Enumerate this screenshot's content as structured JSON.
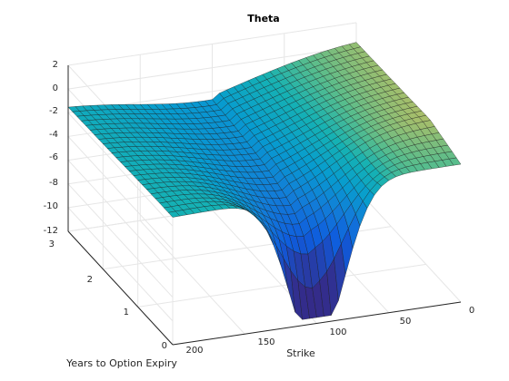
{
  "chart_data": {
    "type": "surface",
    "title": "Theta",
    "xlabel": "Strike",
    "ylabel": "Years to Option Expiry",
    "zlabel": "",
    "xlim": [
      0,
      200
    ],
    "ylim": [
      0,
      3
    ],
    "zlim": [
      -12,
      2
    ],
    "x_ticks": [
      "0",
      "50",
      "100",
      "150",
      "200"
    ],
    "y_ticks": [
      "0",
      "1",
      "2",
      "3"
    ],
    "z_ticks": [
      "2",
      "0",
      "-2",
      "-4",
      "-6",
      "-8",
      "-10",
      "-12"
    ],
    "grid": true,
    "colormap": "parula",
    "approximate_minimum": {
      "strike": 100,
      "years": 0.1,
      "theta": -11.5
    },
    "approximate_maximum": {
      "strike": 0,
      "years": 3,
      "theta": 1.5
    }
  }
}
